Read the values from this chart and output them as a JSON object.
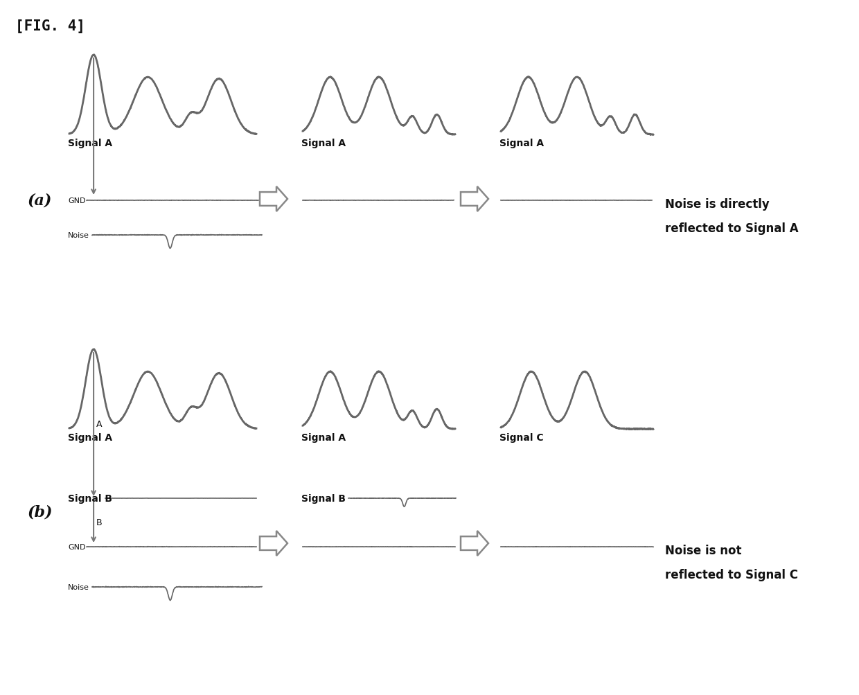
{
  "fig_label": "[FIG. 4]",
  "panel_a_label": "(a)",
  "panel_b_label": "(b)",
  "bg_color": "#ffffff",
  "line_color": "#666666",
  "text_color": "#111111",
  "noise_text_a1": "Noise is directly",
  "noise_text_a2": "reflected to Signal A",
  "noise_text_b1": "Noise is not",
  "noise_text_b2": "reflected to Signal C"
}
